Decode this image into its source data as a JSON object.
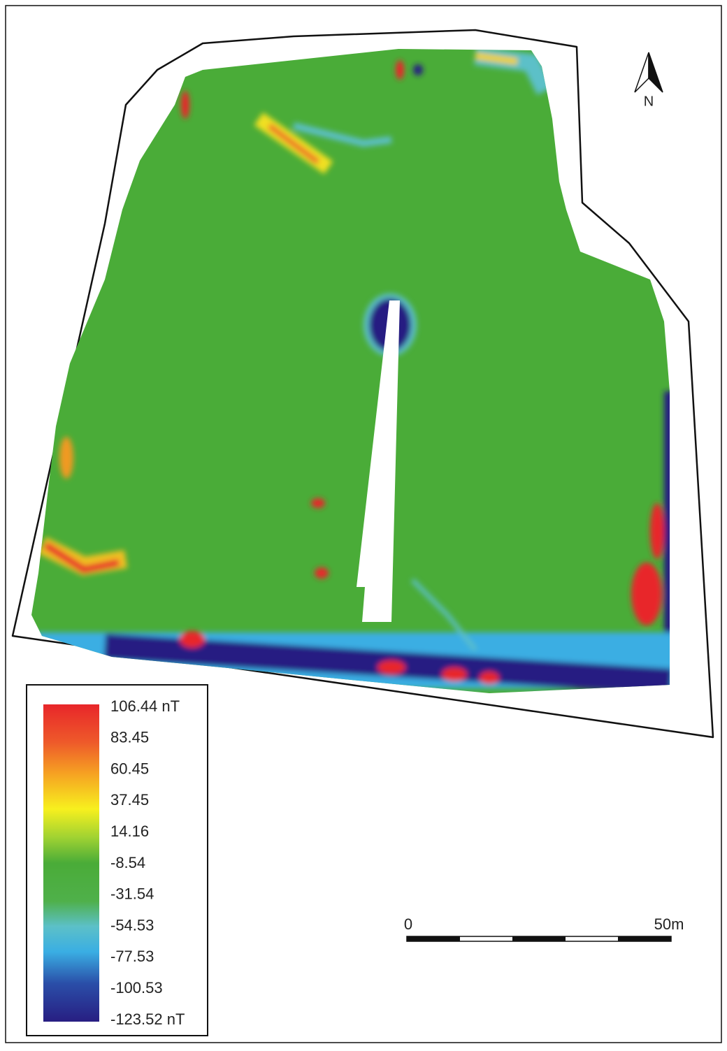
{
  "north": "N",
  "scale_bar": {
    "start": "0",
    "end": "50m"
  },
  "legend": {
    "labels": [
      "106.44 nT",
      "83.45",
      "60.45",
      "37.45",
      "14.16",
      "-8.54",
      "-31.54",
      "-54.53",
      "-77.53",
      "-100.53",
      "-123.52 nT"
    ]
  }
}
